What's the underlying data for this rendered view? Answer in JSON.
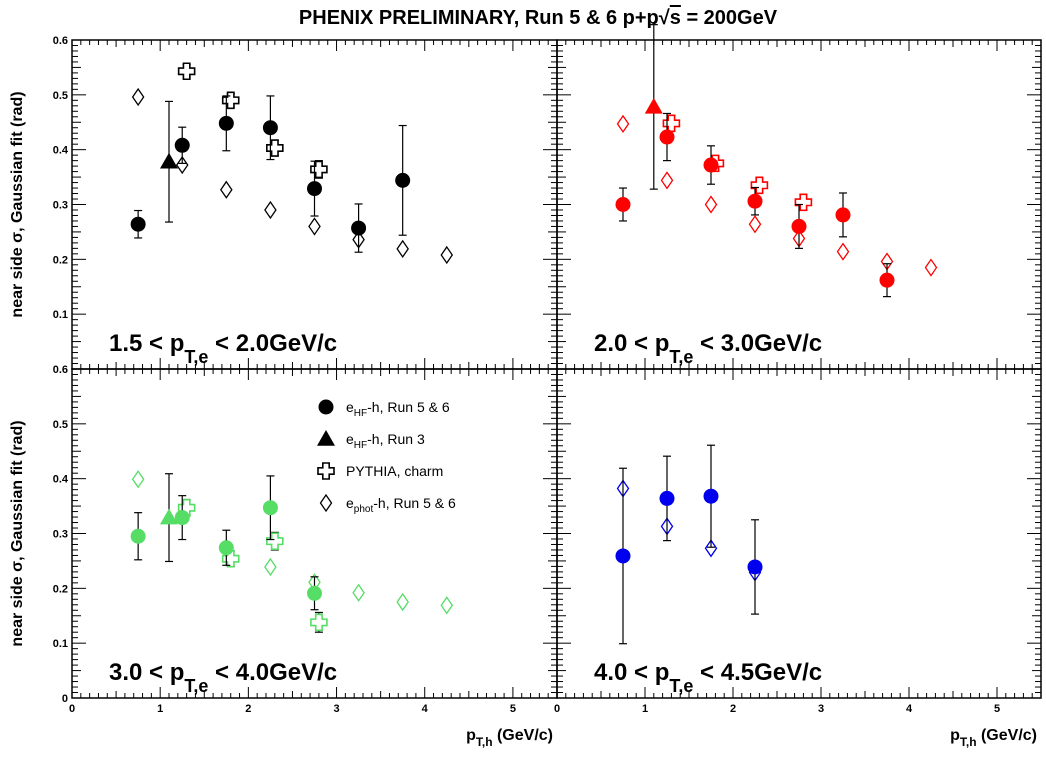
{
  "chart_data": {
    "type": "scatter",
    "title": "PHENIX PRELIMINARY, Run 5 & 6 p+p√s = 200GeV",
    "title_parts": {
      "main": "PHENIX PRELIMINARY, Run 5 & 6 p+p",
      "sqrt": "√",
      "s": "s",
      "tail": " = 200GeV"
    },
    "ylabel": "near side σ, Gaussian fit (rad)",
    "xlabel": {
      "main": "p",
      "sub": "T,h",
      "tail": " (GeV/c)"
    },
    "xlim": [
      0,
      5.5
    ],
    "ylim": [
      0,
      0.6
    ],
    "x_tick_labels": [
      "0",
      "1",
      "2",
      "3",
      "4",
      "5"
    ],
    "y_tick_labels": [
      "0",
      "0.1",
      "0.2",
      "0.3",
      "0.4",
      "0.5",
      "0.6"
    ],
    "legend": [
      {
        "marker": "circle",
        "label_main": "e",
        "label_sub": "HF",
        "label_tail": "-h, Run 5 & 6"
      },
      {
        "marker": "triangle",
        "label_main": "e",
        "label_sub": "HF",
        "label_tail": "-h, Run 3"
      },
      {
        "marker": "cross",
        "label_main": "PYTHIA, charm",
        "label_sub": "",
        "label_tail": ""
      },
      {
        "marker": "diamond",
        "label_main": "e",
        "label_sub": "phot",
        "label_tail": "-h, Run 5 & 6"
      }
    ],
    "panels": [
      {
        "label": {
          "pre": "1.5 < p",
          "sub": "T,e",
          "post": " < 2.0GeV/c"
        },
        "color": "#000000",
        "series": {
          "eHF_run56": [
            {
              "x": 0.75,
              "y": 0.264,
              "err": 0.025
            },
            {
              "x": 1.25,
              "y": 0.408,
              "err": 0.033
            },
            {
              "x": 1.75,
              "y": 0.448,
              "err": 0.05
            },
            {
              "x": 2.25,
              "y": 0.44,
              "err": 0.058
            },
            {
              "x": 2.75,
              "y": 0.329,
              "err": 0.05
            },
            {
              "x": 3.25,
              "y": 0.257,
              "err": 0.044
            },
            {
              "x": 3.75,
              "y": 0.344,
              "err": 0.1
            }
          ],
          "eHF_run3": [
            {
              "x": 1.1,
              "y": 0.378,
              "err": 0.11
            }
          ],
          "pythia_charm": [
            {
              "x": 1.3,
              "y": 0.543,
              "err": 0.012
            },
            {
              "x": 1.8,
              "y": 0.49,
              "err": 0.012
            },
            {
              "x": 2.3,
              "y": 0.403,
              "err": 0.014
            },
            {
              "x": 2.8,
              "y": 0.364,
              "err": 0.016
            }
          ],
          "ephot_run56": [
            {
              "x": 0.75,
              "y": 0.496
            },
            {
              "x": 1.25,
              "y": 0.372
            },
            {
              "x": 1.75,
              "y": 0.327
            },
            {
              "x": 2.25,
              "y": 0.29
            },
            {
              "x": 2.75,
              "y": 0.26
            },
            {
              "x": 3.25,
              "y": 0.236
            },
            {
              "x": 3.75,
              "y": 0.219
            },
            {
              "x": 4.25,
              "y": 0.208
            }
          ]
        }
      },
      {
        "label": {
          "pre": "2.0 < p",
          "sub": "T,e",
          "post": " < 3.0GeV/c"
        },
        "color": "#ff0000",
        "series": {
          "eHF_run56": [
            {
              "x": 0.75,
              "y": 0.3,
              "err": 0.03
            },
            {
              "x": 1.25,
              "y": 0.423,
              "err": 0.043
            },
            {
              "x": 1.75,
              "y": 0.372,
              "err": 0.035
            },
            {
              "x": 2.25,
              "y": 0.306,
              "err": 0.025
            },
            {
              "x": 2.75,
              "y": 0.26,
              "err": 0.04
            },
            {
              "x": 3.25,
              "y": 0.281,
              "err": 0.04
            },
            {
              "x": 3.75,
              "y": 0.162,
              "err": 0.03
            }
          ],
          "eHF_run3": [
            {
              "x": 1.1,
              "y": 0.478,
              "err": 0.15
            }
          ],
          "pythia_charm": [
            {
              "x": 1.3,
              "y": 0.448,
              "err": 0.014
            },
            {
              "x": 1.8,
              "y": 0.375,
              "err": 0.012
            },
            {
              "x": 2.3,
              "y": 0.335,
              "err": 0.012
            },
            {
              "x": 2.8,
              "y": 0.304,
              "err": 0.014
            }
          ],
          "ephot_run56": [
            {
              "x": 0.75,
              "y": 0.447
            },
            {
              "x": 1.25,
              "y": 0.344
            },
            {
              "x": 1.75,
              "y": 0.3
            },
            {
              "x": 2.25,
              "y": 0.264
            },
            {
              "x": 2.75,
              "y": 0.238
            },
            {
              "x": 3.25,
              "y": 0.214
            },
            {
              "x": 3.75,
              "y": 0.196
            },
            {
              "x": 4.25,
              "y": 0.185
            }
          ]
        }
      },
      {
        "label": {
          "pre": "3.0 < p",
          "sub": "T,e",
          "post": " < 4.0GeV/c"
        },
        "color": "#55dd66",
        "series": {
          "eHF_run56": [
            {
              "x": 0.75,
              "y": 0.295,
              "err": 0.043
            },
            {
              "x": 1.25,
              "y": 0.329,
              "err": 0.04
            },
            {
              "x": 1.75,
              "y": 0.274,
              "err": 0.032
            },
            {
              "x": 2.25,
              "y": 0.347,
              "err": 0.058
            },
            {
              "x": 2.75,
              "y": 0.191,
              "err": 0.03
            }
          ],
          "eHF_run3": [
            {
              "x": 1.1,
              "y": 0.329,
              "err": 0.08
            }
          ],
          "pythia_charm": [
            {
              "x": 1.3,
              "y": 0.347,
              "err": 0.015
            },
            {
              "x": 1.8,
              "y": 0.254,
              "err": 0.014
            },
            {
              "x": 2.3,
              "y": 0.286,
              "err": 0.016
            },
            {
              "x": 2.8,
              "y": 0.138,
              "err": 0.018
            }
          ],
          "ephot_run56": [
            {
              "x": 0.75,
              "y": 0.399
            },
            {
              "x": 1.25,
              "y": 0.33
            },
            {
              "x": 1.75,
              "y": 0.274
            },
            {
              "x": 2.25,
              "y": 0.239
            },
            {
              "x": 2.75,
              "y": 0.211
            },
            {
              "x": 3.25,
              "y": 0.192
            },
            {
              "x": 3.75,
              "y": 0.175
            },
            {
              "x": 4.25,
              "y": 0.169
            }
          ]
        }
      },
      {
        "label": {
          "pre": "4.0 < p",
          "sub": "T,e",
          "post": " < 4.5GeV/c"
        },
        "color": "#0000ee",
        "series": {
          "eHF_run56": [
            {
              "x": 0.75,
              "y": 0.259,
              "err": 0.16
            },
            {
              "x": 1.25,
              "y": 0.364,
              "err": 0.077
            },
            {
              "x": 1.75,
              "y": 0.368,
              "err": 0.093
            },
            {
              "x": 2.25,
              "y": 0.239,
              "err": 0.086
            }
          ],
          "eHF_run3": [],
          "pythia_charm": [],
          "ephot_run56": [
            {
              "x": 0.75,
              "y": 0.382
            },
            {
              "x": 1.25,
              "y": 0.313
            },
            {
              "x": 1.75,
              "y": 0.273
            },
            {
              "x": 2.25,
              "y": 0.229
            }
          ]
        }
      }
    ]
  }
}
